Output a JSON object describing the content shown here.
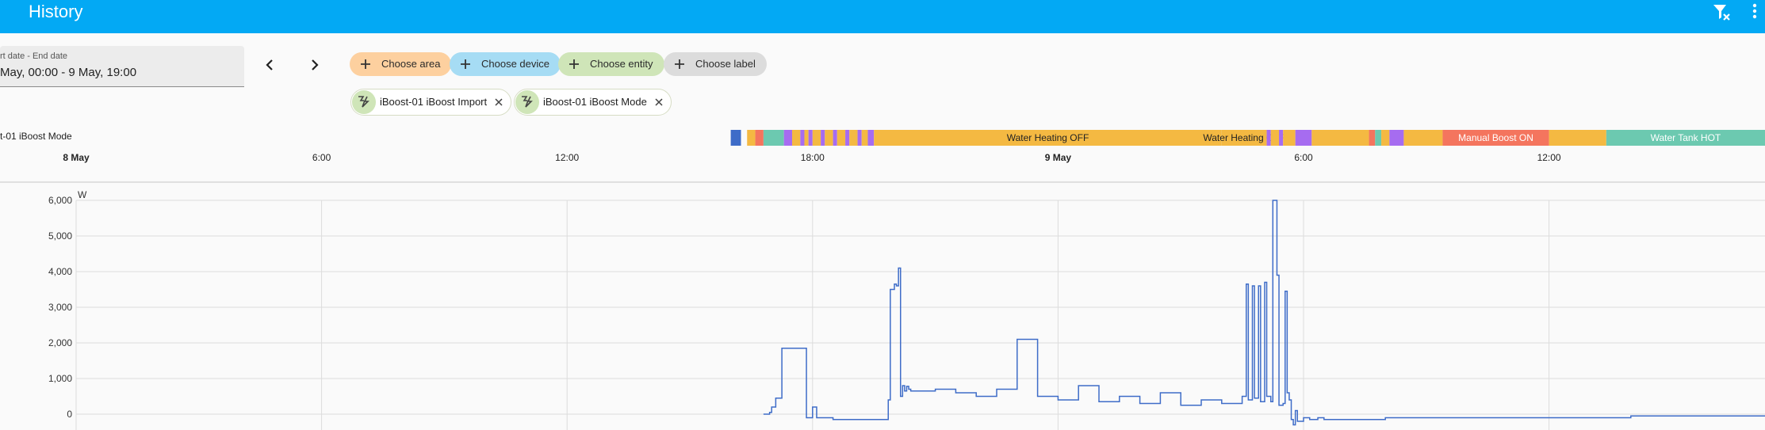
{
  "header": {
    "title": "History",
    "filter_icon": "filter-remove-icon",
    "menu_icon": "dots-vertical-icon"
  },
  "date_range": {
    "label": "rt date - End date",
    "value": "May, 00:00 - 9 May, 19:00",
    "prev_icon": "chevron-left-icon",
    "next_icon": "chevron-right-icon"
  },
  "target_chips": {
    "area": "Choose area",
    "device": "Choose device",
    "entity": "Choose entity",
    "label": "Choose label"
  },
  "selected_entities": [
    {
      "label": "iBoost-01 iBoost Import"
    },
    {
      "label": "iBoost-01 iBoost Mode"
    }
  ],
  "timeline": {
    "entity_label": "t-01 iBoost Mode",
    "state_labels": {
      "heating_off_1": "Water Heating OFF",
      "heating_off_2": "Water Heating OFF",
      "manual_boost": "Manual Boost ON",
      "tank_hot": "Water Tank HOT"
    },
    "colors": {
      "heating_off": "#f4b942",
      "purple": "#a66cf0",
      "red": "#f4755e",
      "teal": "#6cc9b0",
      "blue": "#3e6cc8"
    }
  },
  "time_axis": {
    "labels": [
      "8 May",
      "6:00",
      "12:00",
      "18:00",
      "9 May",
      "6:00",
      "12:00"
    ],
    "bold": [
      true,
      false,
      false,
      false,
      true,
      false,
      false
    ]
  },
  "chart_data": {
    "type": "line",
    "title": "",
    "xlabel": "",
    "ylabel": "W",
    "yticks": [
      "6,000",
      "5,000",
      "4,000",
      "3,000",
      "2,000",
      "1,000",
      "0"
    ],
    "ylim": [
      0,
      6000
    ],
    "x_unit": "hours since 8 May 00:00",
    "xlim": [
      0,
      42
    ],
    "grid": true,
    "series": [
      {
        "name": "iBoost-01 iBoost Import",
        "color": "#3e6cc8",
        "x": [
          16.8,
          16.9,
          16.95,
          17.0,
          17.1,
          17.2,
          17.25,
          17.3,
          17.8,
          17.85,
          18.0,
          18.1,
          18.5,
          19.0,
          19.5,
          19.8,
          19.85,
          19.9,
          20.0,
          20.05,
          20.1,
          20.15,
          20.2,
          20.25,
          20.3,
          20.35,
          20.4,
          21.0,
          21.5,
          22.0,
          22.5,
          23.0,
          23.5,
          24.0,
          24.5,
          25.0,
          25.5,
          26.0,
          26.5,
          27.0,
          27.5,
          28.0,
          28.5,
          28.6,
          28.65,
          28.75,
          28.8,
          28.9,
          28.95,
          29.05,
          29.1,
          29.2,
          29.25,
          29.35,
          29.4,
          29.5,
          29.55,
          29.6,
          29.65,
          29.7,
          29.75,
          29.8,
          29.85,
          30.0,
          30.15,
          30.2,
          30.25,
          30.35,
          30.5,
          31.0,
          32.0,
          33.0,
          34.0,
          35.0,
          36.0,
          38.0,
          40.0,
          42.0
        ],
        "y": [
          0,
          0,
          50,
          200,
          450,
          450,
          1850,
          1850,
          1850,
          -100,
          200,
          -100,
          -150,
          -150,
          -150,
          -150,
          400,
          3500,
          3650,
          3600,
          4100,
          500,
          800,
          650,
          780,
          700,
          650,
          700,
          600,
          500,
          700,
          2100,
          500,
          400,
          800,
          350,
          500,
          300,
          600,
          250,
          400,
          300,
          500,
          3650,
          400,
          3600,
          450,
          3600,
          350,
          3700,
          500,
          350,
          6000,
          3900,
          250,
          300,
          3450,
          600,
          400,
          -150,
          -300,
          100,
          -200,
          -100,
          -150,
          -150,
          -150,
          -100,
          -150,
          -150,
          -100,
          -100,
          -100,
          -100,
          -100,
          -50,
          -50,
          0
        ]
      }
    ],
    "timeline_segments": [
      {
        "start": 16.0,
        "end": 16.25,
        "state": "blue"
      },
      {
        "start": 16.4,
        "end": 16.6,
        "state": "heating_off"
      },
      {
        "start": 16.6,
        "end": 16.8,
        "state": "red"
      },
      {
        "start": 16.8,
        "end": 17.3,
        "state": "teal"
      },
      {
        "start": 17.3,
        "end": 17.5,
        "state": "purple"
      },
      {
        "start": 17.5,
        "end": 17.7,
        "state": "heating_off"
      },
      {
        "start": 17.7,
        "end": 17.8,
        "state": "purple"
      },
      {
        "start": 17.8,
        "end": 17.9,
        "state": "heating_off"
      },
      {
        "start": 17.9,
        "end": 18.0,
        "state": "purple"
      },
      {
        "start": 18.0,
        "end": 18.2,
        "state": "heating_off"
      },
      {
        "start": 18.2,
        "end": 18.3,
        "state": "purple"
      },
      {
        "start": 18.3,
        "end": 18.5,
        "state": "heating_off"
      },
      {
        "start": 18.5,
        "end": 18.6,
        "state": "purple"
      },
      {
        "start": 18.6,
        "end": 18.8,
        "state": "heating_off"
      },
      {
        "start": 18.8,
        "end": 18.9,
        "state": "purple"
      },
      {
        "start": 18.9,
        "end": 19.1,
        "state": "heating_off"
      },
      {
        "start": 19.1,
        "end": 19.2,
        "state": "purple"
      },
      {
        "start": 19.2,
        "end": 19.35,
        "state": "heating_off"
      },
      {
        "start": 19.35,
        "end": 19.5,
        "state": "purple"
      },
      {
        "start": 19.5,
        "end": 28.0,
        "state": "heating_off",
        "label": "heating_off_1"
      },
      {
        "start": 28.0,
        "end": 29.1,
        "state": "heating_off",
        "label": "heating_off_2"
      },
      {
        "start": 29.1,
        "end": 29.2,
        "state": "purple"
      },
      {
        "start": 29.2,
        "end": 29.4,
        "state": "heating_off"
      },
      {
        "start": 29.4,
        "end": 29.5,
        "state": "purple"
      },
      {
        "start": 29.5,
        "end": 29.8,
        "state": "heating_off"
      },
      {
        "start": 29.8,
        "end": 30.2,
        "state": "purple"
      },
      {
        "start": 30.2,
        "end": 31.6,
        "state": "heating_off"
      },
      {
        "start": 31.6,
        "end": 31.75,
        "state": "red"
      },
      {
        "start": 31.75,
        "end": 31.9,
        "state": "teal"
      },
      {
        "start": 31.9,
        "end": 32.1,
        "state": "heating_off"
      },
      {
        "start": 32.1,
        "end": 32.45,
        "state": "purple"
      },
      {
        "start": 32.45,
        "end": 33.4,
        "state": "heating_off"
      },
      {
        "start": 33.4,
        "end": 36.0,
        "state": "red",
        "label": "manual_boost"
      },
      {
        "start": 36.0,
        "end": 37.4,
        "state": "heating_off"
      },
      {
        "start": 37.4,
        "end": 42.0,
        "state": "teal",
        "label": "tank_hot"
      }
    ]
  }
}
